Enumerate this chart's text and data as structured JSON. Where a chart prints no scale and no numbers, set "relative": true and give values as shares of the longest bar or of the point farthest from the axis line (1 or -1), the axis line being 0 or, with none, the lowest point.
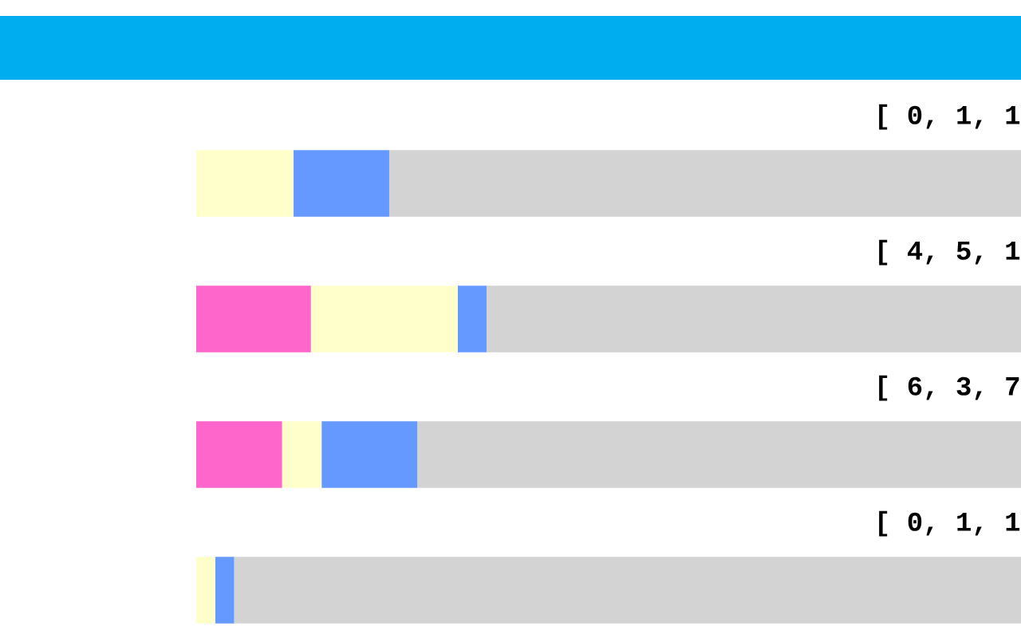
{
  "chart_data": {
    "type": "bar",
    "orientation": "horizontal",
    "stacked": true,
    "relative": true,
    "tick_labels": "y",
    "categories": [
      "[ 0, 1, 1",
      "[ 4, 5, 1",
      "[ 6, 3, 7",
      "[ 0, 1, 1"
    ],
    "series": [
      {
        "color": "#ff66cc",
        "values": [
          0,
          0.139,
          0.104,
          0
        ]
      },
      {
        "color": "#ffffcc",
        "values": [
          0.118,
          0.178,
          0.048,
          0.023
        ]
      },
      {
        "color": "#6699ff",
        "values": [
          0.116,
          0.035,
          0.116,
          0.023
        ]
      },
      {
        "color": "#d3d3d3",
        "values": [
          0.766,
          0.648,
          0.732,
          0.954
        ]
      }
    ]
  }
}
